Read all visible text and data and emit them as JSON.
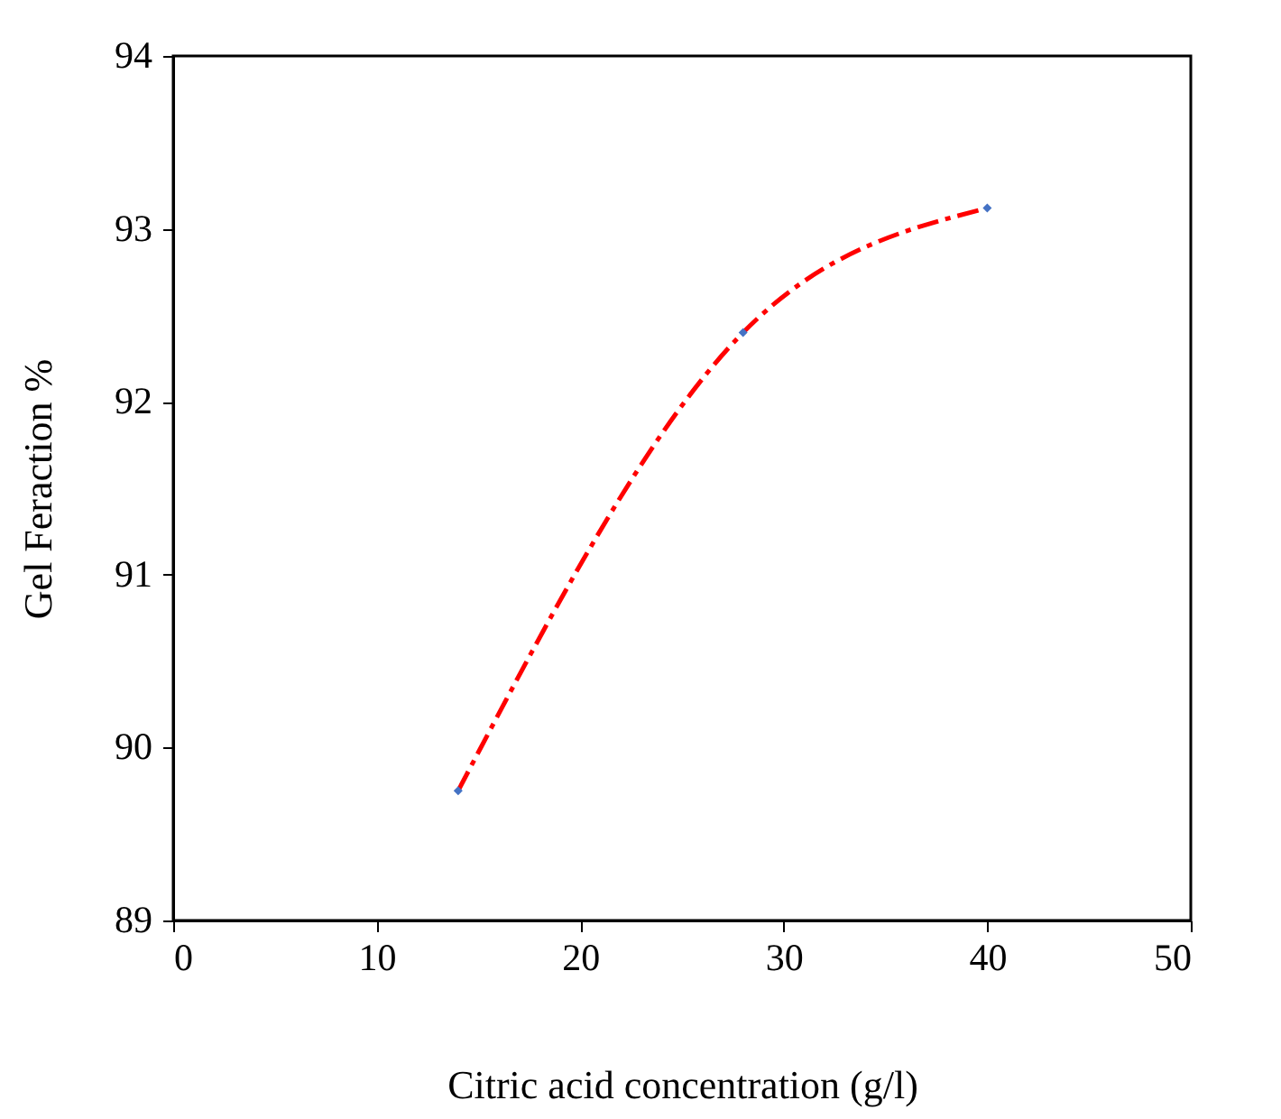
{
  "chart_data": {
    "type": "line",
    "xlabel": "Citric acid concentration (g/l)",
    "ylabel": "Gel Feraction %",
    "x": [
      14,
      28,
      40
    ],
    "series": [
      {
        "type": "line",
        "color": "#ff0000",
        "values": [
          89.75,
          92.4,
          93.12
        ],
        "line_style": "dashed",
        "marker": "none"
      },
      {
        "type": "scatter",
        "color": "#4472c4",
        "values": [
          89.75,
          92.4,
          93.12
        ],
        "marker": "diamond"
      }
    ],
    "xlim": [
      0,
      50
    ],
    "xticks": [
      0,
      10,
      20,
      30,
      40,
      50
    ],
    "ylim": [
      89,
      94
    ],
    "yticks": [
      89,
      90,
      91,
      92,
      93,
      94
    ],
    "grid": false
  }
}
